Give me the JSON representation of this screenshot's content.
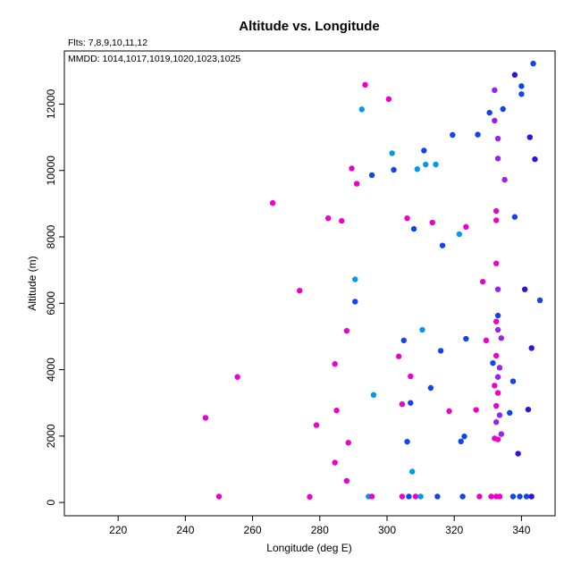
{
  "chart_data": {
    "type": "scatter",
    "title": "Altitude vs. Longitude",
    "xlabel": "Longitude (deg E)",
    "ylabel": "Altitude (m)",
    "annotations": [
      "Flts: 7,8,9,10,11,12",
      "MMDD: 1014,1017,1019,1020,1023,1025"
    ],
    "xlim": [
      204,
      350
    ],
    "ylim": [
      -400,
      13600
    ],
    "x_ticks": [
      220,
      240,
      260,
      280,
      300,
      320,
      340
    ],
    "y_ticks": [
      0,
      2000,
      4000,
      6000,
      8000,
      10000,
      12000
    ],
    "grid": false,
    "colors": {
      "magenta": "#ee00cc",
      "violet": "#9922ee",
      "blue": "#1144ee",
      "sky": "#0099ee",
      "indigo": "#3311dd"
    },
    "points": [
      {
        "x": 246,
        "y": 2550,
        "c": "magenta"
      },
      {
        "x": 250,
        "y": 180,
        "c": "magenta"
      },
      {
        "x": 255.5,
        "y": 3780,
        "c": "magenta"
      },
      {
        "x": 266,
        "y": 9020,
        "c": "magenta"
      },
      {
        "x": 274,
        "y": 6380,
        "c": "magenta"
      },
      {
        "x": 277,
        "y": 170,
        "c": "magenta"
      },
      {
        "x": 279,
        "y": 2330,
        "c": "magenta"
      },
      {
        "x": 282.5,
        "y": 8560,
        "c": "magenta"
      },
      {
        "x": 284.5,
        "y": 4170,
        "c": "magenta"
      },
      {
        "x": 284.5,
        "y": 1200,
        "c": "magenta"
      },
      {
        "x": 285,
        "y": 2770,
        "c": "magenta"
      },
      {
        "x": 286.5,
        "y": 8480,
        "c": "magenta"
      },
      {
        "x": 288,
        "y": 5170,
        "c": "magenta"
      },
      {
        "x": 288,
        "y": 650,
        "c": "magenta"
      },
      {
        "x": 288.5,
        "y": 1800,
        "c": "magenta"
      },
      {
        "x": 289.5,
        "y": 10060,
        "c": "magenta"
      },
      {
        "x": 290.5,
        "y": 6720,
        "c": "sky"
      },
      {
        "x": 290.5,
        "y": 6050,
        "c": "blue"
      },
      {
        "x": 291,
        "y": 9600,
        "c": "magenta"
      },
      {
        "x": 292.5,
        "y": 11840,
        "c": "sky"
      },
      {
        "x": 293.5,
        "y": 12580,
        "c": "magenta"
      },
      {
        "x": 294.5,
        "y": 180,
        "c": "sky"
      },
      {
        "x": 295.5,
        "y": 9860,
        "c": "blue"
      },
      {
        "x": 295.5,
        "y": 180,
        "c": "magenta"
      },
      {
        "x": 296,
        "y": 3240,
        "c": "sky"
      },
      {
        "x": 300.5,
        "y": 12150,
        "c": "magenta"
      },
      {
        "x": 301.5,
        "y": 10520,
        "c": "sky"
      },
      {
        "x": 302,
        "y": 10020,
        "c": "blue"
      },
      {
        "x": 303.5,
        "y": 4400,
        "c": "magenta"
      },
      {
        "x": 304.5,
        "y": 2960,
        "c": "magenta"
      },
      {
        "x": 304.5,
        "y": 180,
        "c": "magenta"
      },
      {
        "x": 305,
        "y": 4880,
        "c": "blue"
      },
      {
        "x": 306,
        "y": 8560,
        "c": "magenta"
      },
      {
        "x": 306,
        "y": 1830,
        "c": "blue"
      },
      {
        "x": 306.5,
        "y": 180,
        "c": "blue"
      },
      {
        "x": 307,
        "y": 3800,
        "c": "magenta"
      },
      {
        "x": 307,
        "y": 3000,
        "c": "blue"
      },
      {
        "x": 307.5,
        "y": 930,
        "c": "sky"
      },
      {
        "x": 308,
        "y": 8240,
        "c": "blue"
      },
      {
        "x": 308.5,
        "y": 180,
        "c": "magenta"
      },
      {
        "x": 309,
        "y": 10040,
        "c": "sky"
      },
      {
        "x": 310,
        "y": 180,
        "c": "sky"
      },
      {
        "x": 310.5,
        "y": 5200,
        "c": "sky"
      },
      {
        "x": 311,
        "y": 10600,
        "c": "blue"
      },
      {
        "x": 311.5,
        "y": 10180,
        "c": "sky"
      },
      {
        "x": 313,
        "y": 3450,
        "c": "blue"
      },
      {
        "x": 313.5,
        "y": 8430,
        "c": "magenta"
      },
      {
        "x": 314.5,
        "y": 10180,
        "c": "sky"
      },
      {
        "x": 315,
        "y": 180,
        "c": "blue"
      },
      {
        "x": 316,
        "y": 4570,
        "c": "blue"
      },
      {
        "x": 316.5,
        "y": 7740,
        "c": "blue"
      },
      {
        "x": 318.5,
        "y": 2750,
        "c": "magenta"
      },
      {
        "x": 319.5,
        "y": 11070,
        "c": "blue"
      },
      {
        "x": 321.5,
        "y": 8080,
        "c": "sky"
      },
      {
        "x": 322,
        "y": 1840,
        "c": "blue"
      },
      {
        "x": 322.5,
        "y": 180,
        "c": "blue"
      },
      {
        "x": 323,
        "y": 1990,
        "c": "blue"
      },
      {
        "x": 323.5,
        "y": 8300,
        "c": "magenta"
      },
      {
        "x": 323.5,
        "y": 4930,
        "c": "blue"
      },
      {
        "x": 326.5,
        "y": 2790,
        "c": "magenta"
      },
      {
        "x": 327,
        "y": 11080,
        "c": "blue"
      },
      {
        "x": 327.5,
        "y": 180,
        "c": "magenta"
      },
      {
        "x": 328.5,
        "y": 6650,
        "c": "magenta"
      },
      {
        "x": 329.5,
        "y": 4880,
        "c": "magenta"
      },
      {
        "x": 330.5,
        "y": 11740,
        "c": "blue"
      },
      {
        "x": 331,
        "y": 180,
        "c": "magenta"
      },
      {
        "x": 331.5,
        "y": 4200,
        "c": "blue"
      },
      {
        "x": 332,
        "y": 12420,
        "c": "violet"
      },
      {
        "x": 332,
        "y": 11500,
        "c": "violet"
      },
      {
        "x": 332,
        "y": 3520,
        "c": "magenta"
      },
      {
        "x": 332,
        "y": 1930,
        "c": "magenta"
      },
      {
        "x": 332.5,
        "y": 8780,
        "c": "magenta"
      },
      {
        "x": 332.5,
        "y": 8500,
        "c": "magenta"
      },
      {
        "x": 332.5,
        "y": 7200,
        "c": "magenta"
      },
      {
        "x": 332.5,
        "y": 5450,
        "c": "magenta"
      },
      {
        "x": 332.5,
        "y": 4420,
        "c": "magenta"
      },
      {
        "x": 332.5,
        "y": 2910,
        "c": "magenta"
      },
      {
        "x": 332.5,
        "y": 2420,
        "c": "violet"
      },
      {
        "x": 332.5,
        "y": 180,
        "c": "magenta"
      },
      {
        "x": 333,
        "y": 10960,
        "c": "violet"
      },
      {
        "x": 333,
        "y": 10360,
        "c": "violet"
      },
      {
        "x": 333,
        "y": 6420,
        "c": "violet"
      },
      {
        "x": 333,
        "y": 5630,
        "c": "blue"
      },
      {
        "x": 333,
        "y": 5200,
        "c": "violet"
      },
      {
        "x": 333,
        "y": 3780,
        "c": "violet"
      },
      {
        "x": 333,
        "y": 3300,
        "c": "magenta"
      },
      {
        "x": 333,
        "y": 1900,
        "c": "magenta"
      },
      {
        "x": 333.5,
        "y": 4060,
        "c": "violet"
      },
      {
        "x": 333.5,
        "y": 2630,
        "c": "violet"
      },
      {
        "x": 333.5,
        "y": 180,
        "c": "magenta"
      },
      {
        "x": 334,
        "y": 4950,
        "c": "violet"
      },
      {
        "x": 334,
        "y": 2060,
        "c": "violet"
      },
      {
        "x": 334.5,
        "y": 11850,
        "c": "blue"
      },
      {
        "x": 335,
        "y": 9720,
        "c": "violet"
      },
      {
        "x": 336.5,
        "y": 2700,
        "c": "blue"
      },
      {
        "x": 337.5,
        "y": 3650,
        "c": "blue"
      },
      {
        "x": 337.5,
        "y": 180,
        "c": "blue"
      },
      {
        "x": 338,
        "y": 12880,
        "c": "indigo"
      },
      {
        "x": 338,
        "y": 8600,
        "c": "blue"
      },
      {
        "x": 339,
        "y": 1470,
        "c": "indigo"
      },
      {
        "x": 339.5,
        "y": 180,
        "c": "blue"
      },
      {
        "x": 340,
        "y": 12540,
        "c": "blue"
      },
      {
        "x": 340,
        "y": 12300,
        "c": "blue"
      },
      {
        "x": 341,
        "y": 6420,
        "c": "indigo"
      },
      {
        "x": 341.5,
        "y": 180,
        "c": "blue"
      },
      {
        "x": 342,
        "y": 2800,
        "c": "indigo"
      },
      {
        "x": 342.5,
        "y": 11000,
        "c": "indigo"
      },
      {
        "x": 343,
        "y": 4650,
        "c": "indigo"
      },
      {
        "x": 343,
        "y": 180,
        "c": "indigo"
      },
      {
        "x": 343.5,
        "y": 13220,
        "c": "blue"
      },
      {
        "x": 344,
        "y": 10340,
        "c": "indigo"
      },
      {
        "x": 345.5,
        "y": 6090,
        "c": "blue"
      }
    ]
  }
}
